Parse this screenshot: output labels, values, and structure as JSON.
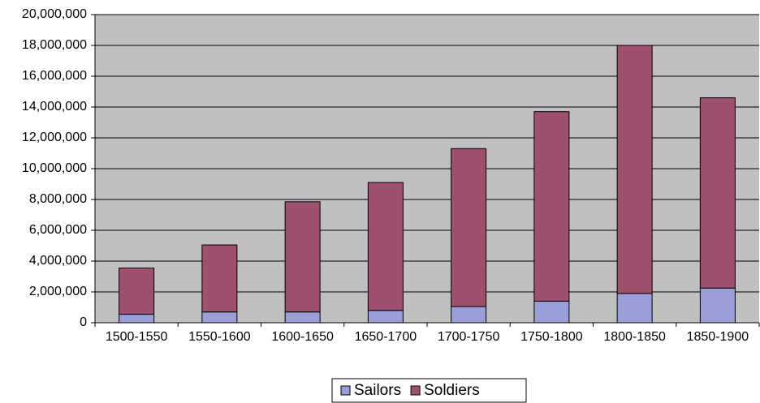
{
  "chart_data": {
    "type": "stacked_bar",
    "categories": [
      "1500-1550",
      "1550-1600",
      "1600-1650",
      "1650-1700",
      "1700-1750",
      "1750-1800",
      "1800-1850",
      "1850-1900"
    ],
    "series": [
      {
        "name": "Sailors",
        "color": "#9a9fd8",
        "values": [
          550000,
          700000,
          700000,
          800000,
          1050000,
          1400000,
          1900000,
          2250000
        ]
      },
      {
        "name": "Soldiers",
        "color": "#a0506f",
        "values": [
          3000000,
          4350000,
          7150000,
          8300000,
          10250000,
          12300000,
          16100000,
          12350000
        ]
      }
    ],
    "ylim": [
      0,
      20000000
    ],
    "yticks": [
      0,
      {
        "value": 2000000,
        "label": "2,000,000"
      },
      {
        "value": 4000000,
        "label": "4,000,000"
      },
      {
        "value": 6000000,
        "label": "6,000,000"
      },
      {
        "value": 8000000,
        "label": "8,000,000"
      },
      {
        "value": 10000000,
        "label": "10,000,000"
      },
      {
        "value": 12000000,
        "label": "12,000,000"
      },
      {
        "value": 14000000,
        "label": "14,000,000"
      },
      {
        "value": 16000000,
        "label": "16,000,000"
      },
      {
        "value": 18000000,
        "label": "18,000,000"
      },
      {
        "value": 20000000,
        "label": "20,000,000"
      }
    ],
    "grid": true,
    "legend": "bottom"
  }
}
